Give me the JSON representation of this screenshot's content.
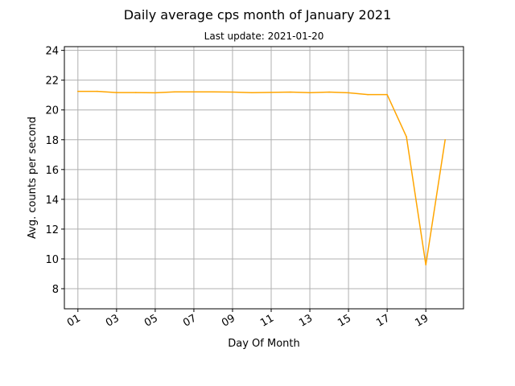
{
  "chart_data": {
    "type": "line",
    "title": "Daily average cps month of January 2021",
    "subtitle": "Last update: 2021-01-20",
    "xlabel": "Day Of Month",
    "ylabel": "Avg. counts per second",
    "x": [
      1,
      2,
      3,
      4,
      5,
      6,
      7,
      8,
      9,
      10,
      11,
      12,
      13,
      14,
      15,
      16,
      17,
      18,
      19,
      20
    ],
    "series": [
      {
        "color": "#ffa500",
        "values": [
          21.25,
          21.25,
          21.17,
          21.17,
          21.15,
          21.21,
          21.21,
          21.21,
          21.2,
          21.16,
          21.18,
          21.2,
          21.16,
          21.2,
          21.15,
          21.03,
          21.03,
          18.2,
          9.6,
          18.0
        ]
      }
    ],
    "xlim": [
      0.3,
      20.95
    ],
    "ylim": [
      6.65,
      24.25
    ],
    "x_ticks": [
      1,
      3,
      5,
      7,
      9,
      11,
      13,
      15,
      17,
      19
    ],
    "x_tick_labels": [
      "01",
      "03",
      "05",
      "07",
      "09",
      "11",
      "13",
      "15",
      "17",
      "19"
    ],
    "y_ticks": [
      8,
      10,
      12,
      14,
      16,
      18,
      20,
      22,
      24
    ],
    "y_tick_labels": [
      "8",
      "10",
      "12",
      "14",
      "16",
      "18",
      "20",
      "22",
      "24"
    ],
    "grid": true,
    "grid_color": "#b0b0b0"
  }
}
